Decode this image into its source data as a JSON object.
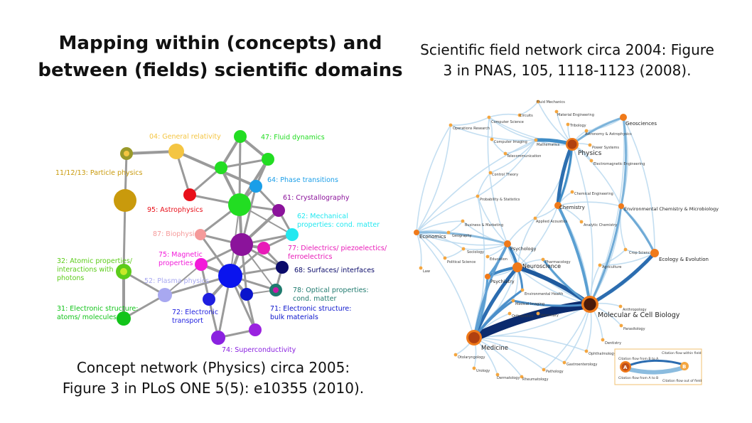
{
  "title": {
    "line1": "Mapping within (concepts) and",
    "line2": "between (fields) scientific domains"
  },
  "right_caption": {
    "line1": "Scientific field network circa 2004: Figure",
    "line2": "3 in PNAS, 105, 1118-1123 (2008)."
  },
  "left_caption": {
    "line1": "Concept network (Physics) circa 2005:",
    "line2": "Figure 3 in PLoS ONE 5(5): e10355 (2010)."
  },
  "concept_network": {
    "nodes": [
      {
        "id": "general-relativity",
        "label": "04: General relativity",
        "color": "#f4c542"
      },
      {
        "id": "particle-physics",
        "label": "11/12/13: Particle physics",
        "color": "#c99a0c"
      },
      {
        "id": "particle-small",
        "label": "",
        "color": "#9a9a2a"
      },
      {
        "id": "fluid-dynamics",
        "label": "47: Fluid dynamics",
        "color": "#22dd22"
      },
      {
        "id": "phase-transitions",
        "label": "64: Phase transitions",
        "color": "#1a9ee8"
      },
      {
        "id": "crystallography",
        "label": "61: Crystallography",
        "color": "#8b139b"
      },
      {
        "id": "astrophysics",
        "label": "95: Astrophysics",
        "color": "#e8101a"
      },
      {
        "id": "mechanical",
        "label": "62: Mechanical properties: cond. matter",
        "label_lines": [
          "62: Mechanical",
          "properties: cond. matter"
        ],
        "color": "#22e8f0"
      },
      {
        "id": "biophysics",
        "label": "87: Biophysics",
        "color": "#f59a9a"
      },
      {
        "id": "dielectrics",
        "label": "77: Dielectrics/ piezoelectics/ ferroelectrics",
        "label_lines": [
          "77: Dielectrics/ piezoelectics/",
          "ferroelectrics"
        ],
        "color": "#e81ab8"
      },
      {
        "id": "magnetic",
        "label": "75: Magnetic properties",
        "label_lines": [
          "75: Magnetic",
          "properties"
        ],
        "color": "#f21ad9"
      },
      {
        "id": "surfaces",
        "label": "68: Surfaces/ interfaces",
        "color": "#0a0a6a"
      },
      {
        "id": "atomic",
        "label": "32: Atomic properties/ interactions with photons",
        "label_lines": [
          "32: Atomic properties/",
          "interactions with",
          "photons"
        ],
        "color": "#5ccc1a"
      },
      {
        "id": "plasma",
        "label": "52: Plasma physics",
        "color": "#a8a8f0"
      },
      {
        "id": "optical",
        "label": "78: Optical properties: cond. matter",
        "label_lines": [
          "78: Optical properties:",
          "cond. matter"
        ],
        "color": "#1f7a6e"
      },
      {
        "id": "electronic-transport",
        "label": "72: Electronic transport",
        "label_lines": [
          "72: Electronic",
          "transport"
        ],
        "color": "#1e1ee0"
      },
      {
        "id": "bulk",
        "label": "71: Electronic structure: bulk materials",
        "label_lines": [
          "71: Electronic structure:",
          "bulk materials"
        ],
        "color": "#0a14cc"
      },
      {
        "id": "electronic-atoms",
        "label": "31: Electronic structure: atoms/ molecules",
        "label_lines": [
          "31: Electronic structure:",
          "atoms/ molecules"
        ],
        "color": "#12c41a"
      },
      {
        "id": "superconductivity",
        "label": "74: Superconductivity",
        "color": "#8a22e0"
      }
    ]
  },
  "field_network": {
    "major_fields": [
      "Physics",
      "Geosciences",
      "Chemistry",
      "Environmental Chemistry & Microbiology",
      "Ecology & Evolution",
      "Neuroscience",
      "Molecular & Cell Biology",
      "Medicine",
      "Economics",
      "Psychology",
      "Psychiatry"
    ],
    "minor_fields": [
      "Fluid Mechanics",
      "Circuits",
      "Material Engineering",
      "Operations Research",
      "Computer Science",
      "Tribology",
      "Astronomy & Astrophysics",
      "Computer Imaging",
      "Mathematics",
      "Power Systems",
      "Telecommunication",
      "Electromagnetic Engineering",
      "Control Theory",
      "Chemical Engineering",
      "Probability & Statistics",
      "Applied Acoustics",
      "Analytic Chemistry",
      "Business & Marketing",
      "Geography",
      "Sociology",
      "Education",
      "Political Science",
      "Pharmacology",
      "Crop Science",
      "Agriculture",
      "Law",
      "Environmental Health",
      "Medical Imaging",
      "Orthopedics",
      "Veterinary",
      "Anthropology",
      "Parasitology",
      "Dentistry",
      "Ophthalmology",
      "Gastroenterology",
      "Otolaryngology",
      "Urology",
      "Dermatology",
      "Rheumatology",
      "Pathology"
    ],
    "legend": {
      "node_a": "A",
      "node_b": "B",
      "flow_b_to_a": "Citation flow from B to A",
      "flow_a_to_b": "Citation flow from A to B",
      "within_field": "Citation flow within field",
      "out_of_field": "Citation flow out of field"
    }
  }
}
